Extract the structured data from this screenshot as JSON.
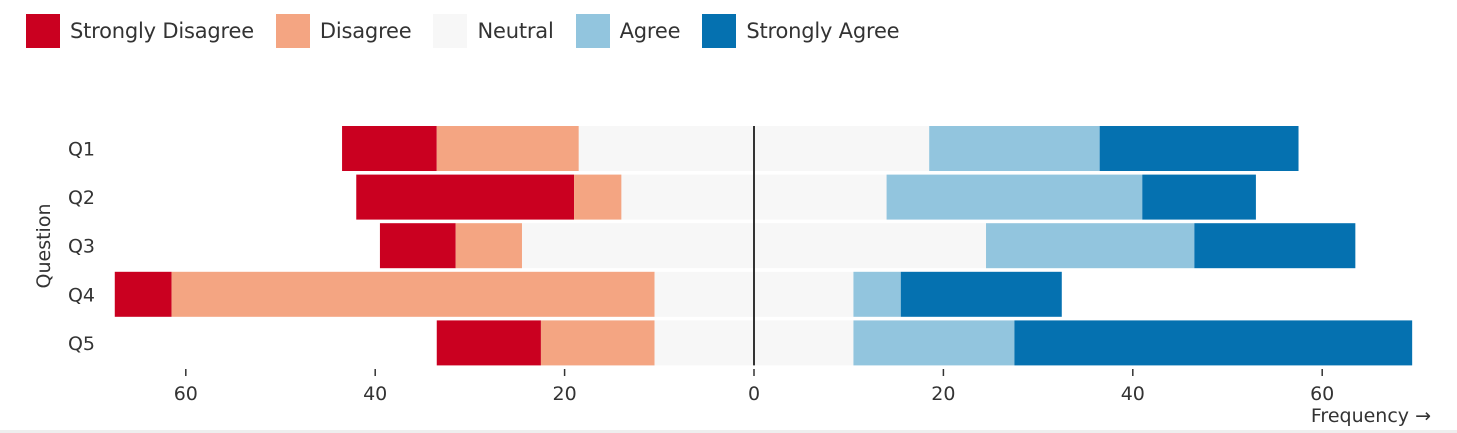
{
  "chart_data": {
    "type": "bar",
    "orientation": "horizontal-diverging",
    "categories": [
      "Q1",
      "Q2",
      "Q3",
      "Q4",
      "Q5"
    ],
    "series": [
      {
        "name": "Strongly Disagree",
        "color": "#ca0020",
        "values": [
          10,
          23,
          8,
          6,
          11
        ]
      },
      {
        "name": "Disagree",
        "color": "#f4a582",
        "values": [
          15,
          5,
          7,
          51,
          12
        ]
      },
      {
        "name": "Neutral",
        "color": "#f7f7f7",
        "values": [
          37,
          28,
          49,
          21,
          21
        ]
      },
      {
        "name": "Agree",
        "color": "#92c5de",
        "values": [
          18,
          27,
          22,
          5,
          17
        ]
      },
      {
        "name": "Strongly Agree",
        "color": "#0571b0",
        "values": [
          21,
          12,
          17,
          17,
          42
        ]
      }
    ],
    "ylabel": "Question",
    "xlabel": "Frequency →",
    "xticks": [
      60,
      40,
      20,
      0,
      20,
      40,
      60
    ],
    "xlim": [
      -67.5,
      67.5
    ],
    "legend_position": "top-left"
  }
}
